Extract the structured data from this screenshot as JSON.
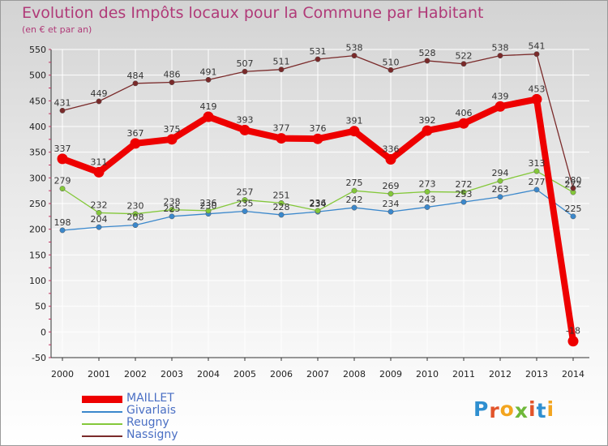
{
  "header": {
    "title": "Evolution des Impôts locaux pour la Commune par Habitant",
    "subtitle": "(en € et par an)"
  },
  "brand": {
    "letters": [
      "P",
      "r",
      "o",
      "x",
      "i",
      "t",
      "i"
    ],
    "colors": [
      "#2f8fd0",
      "#e2542a",
      "#f3a51f",
      "#6fb83a",
      "#e2542a",
      "#2f8fd0",
      "#f3a51f"
    ]
  },
  "chart_data": {
    "type": "line",
    "title": "Evolution des Impôts locaux pour la Commune par Habitant",
    "subtitle": "(en € et par an)",
    "xlabel": "",
    "ylabel": "",
    "x": [
      2000,
      2001,
      2002,
      2003,
      2004,
      2005,
      2006,
      2007,
      2008,
      2009,
      2010,
      2011,
      2012,
      2013,
      2014
    ],
    "ylim": [
      -50,
      550
    ],
    "yticks": [
      -50,
      0,
      50,
      100,
      150,
      200,
      250,
      300,
      350,
      400,
      450,
      500,
      550
    ],
    "grid": true,
    "legend_position": "bottom-left",
    "series": [
      {
        "name": "MAILLET",
        "color": "#ee0000",
        "bold": true,
        "values": [
          337,
          311,
          367,
          375,
          419,
          393,
          377,
          376,
          391,
          336,
          392,
          406,
          439,
          453,
          -18
        ],
        "labels": [
          "337",
          "311",
          "367",
          "375",
          "419",
          "393",
          "377",
          "376",
          "391",
          "336",
          "392",
          "406",
          "439",
          "453",
          "-18"
        ]
      },
      {
        "name": "Givarlais",
        "color": "#3b88cc",
        "bold": false,
        "values": [
          198,
          204,
          208,
          225,
          230,
          235,
          228,
          234,
          242,
          234,
          243,
          253,
          263,
          277,
          225
        ],
        "labels": [
          "198",
          "204",
          "208",
          "225",
          "230",
          "235",
          "228",
          "234",
          "242",
          "234",
          "243",
          "253",
          "263",
          "277",
          "225"
        ]
      },
      {
        "name": "Reugny",
        "color": "#84c83a",
        "bold": false,
        "values": [
          279,
          232,
          230,
          238,
          236,
          257,
          251,
          236,
          275,
          269,
          273,
          272,
          294,
          313,
          272
        ],
        "labels": [
          "279",
          "232",
          "230",
          "238",
          "236",
          "257",
          "251",
          "236",
          "275",
          "269",
          "273",
          "272",
          "294",
          "313",
          "272"
        ]
      },
      {
        "name": "Nassigny",
        "color": "#7a2a2a",
        "bold": false,
        "values": [
          431,
          449,
          484,
          486,
          491,
          507,
          511,
          531,
          538,
          510,
          528,
          522,
          538,
          541,
          280
        ],
        "labels": [
          "431",
          "449",
          "484",
          "486",
          "491",
          "507",
          "511",
          "531",
          "538",
          "510",
          "528",
          "522",
          "538",
          "541",
          "280"
        ]
      }
    ]
  }
}
